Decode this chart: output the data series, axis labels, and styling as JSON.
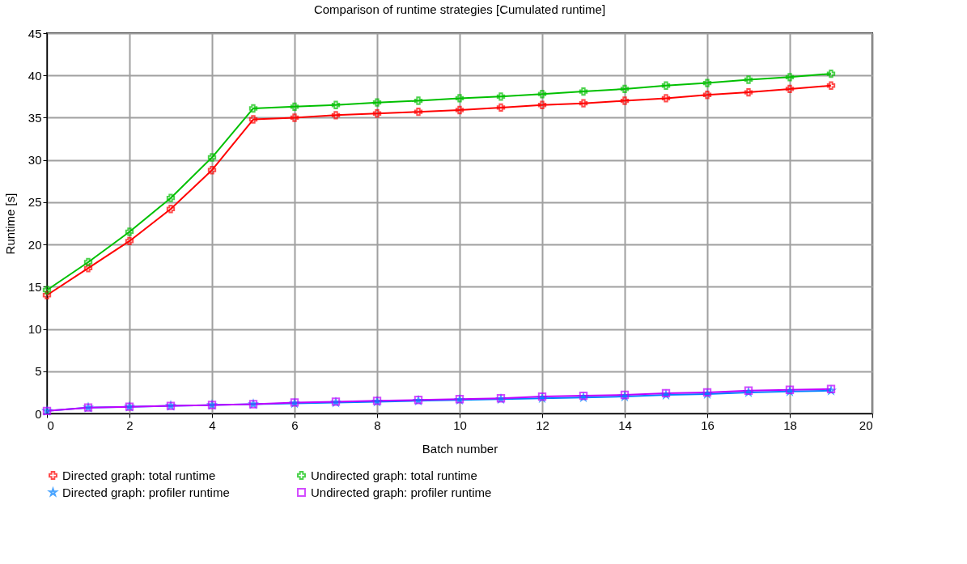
{
  "chart_data": {
    "type": "line",
    "title": "Comparison of runtime strategies [Cumulated runtime]",
    "xlabel": "Batch number",
    "ylabel": "Runtime [s]",
    "x": [
      0,
      1,
      2,
      3,
      4,
      5,
      6,
      7,
      8,
      9,
      10,
      11,
      12,
      13,
      14,
      15,
      16,
      17,
      18,
      19
    ],
    "series": [
      {
        "name": "Directed graph: total runtime",
        "color": "#ff0000",
        "marker": "cross",
        "values": [
          14.0,
          17.2,
          20.4,
          24.2,
          28.8,
          34.8,
          35.0,
          35.3,
          35.5,
          35.7,
          35.9,
          36.2,
          36.5,
          36.7,
          37.0,
          37.3,
          37.7,
          38.0,
          38.4,
          38.8
        ]
      },
      {
        "name": "Undirected graph: total runtime",
        "color": "#00c000",
        "marker": "cross",
        "values": [
          14.6,
          17.9,
          21.5,
          25.5,
          30.3,
          36.1,
          36.3,
          36.5,
          36.8,
          37.0,
          37.3,
          37.5,
          37.8,
          38.1,
          38.4,
          38.8,
          39.1,
          39.5,
          39.8,
          40.2
        ]
      },
      {
        "name": "Directed graph: profiler runtime",
        "color": "#0080ff",
        "marker": "star",
        "values": [
          0.3,
          0.7,
          0.8,
          0.9,
          1.0,
          1.1,
          1.2,
          1.3,
          1.4,
          1.5,
          1.6,
          1.7,
          1.8,
          1.9,
          2.0,
          2.2,
          2.3,
          2.5,
          2.6,
          2.7
        ]
      },
      {
        "name": "Undirected graph: profiler runtime",
        "color": "#c000ff",
        "marker": "square",
        "values": [
          0.3,
          0.7,
          0.8,
          0.9,
          1.0,
          1.1,
          1.3,
          1.4,
          1.5,
          1.6,
          1.7,
          1.8,
          2.0,
          2.1,
          2.2,
          2.4,
          2.5,
          2.7,
          2.8,
          2.9
        ]
      }
    ],
    "xlim": [
      0,
      20
    ],
    "xticks": [
      0,
      2,
      4,
      6,
      8,
      10,
      12,
      14,
      16,
      18,
      20
    ],
    "ylim": [
      0,
      45
    ],
    "yticks": [
      0,
      5,
      10,
      15,
      20,
      25,
      30,
      35,
      40,
      45
    ],
    "grid": true,
    "legend": "bottom",
    "line_style": "solid"
  }
}
